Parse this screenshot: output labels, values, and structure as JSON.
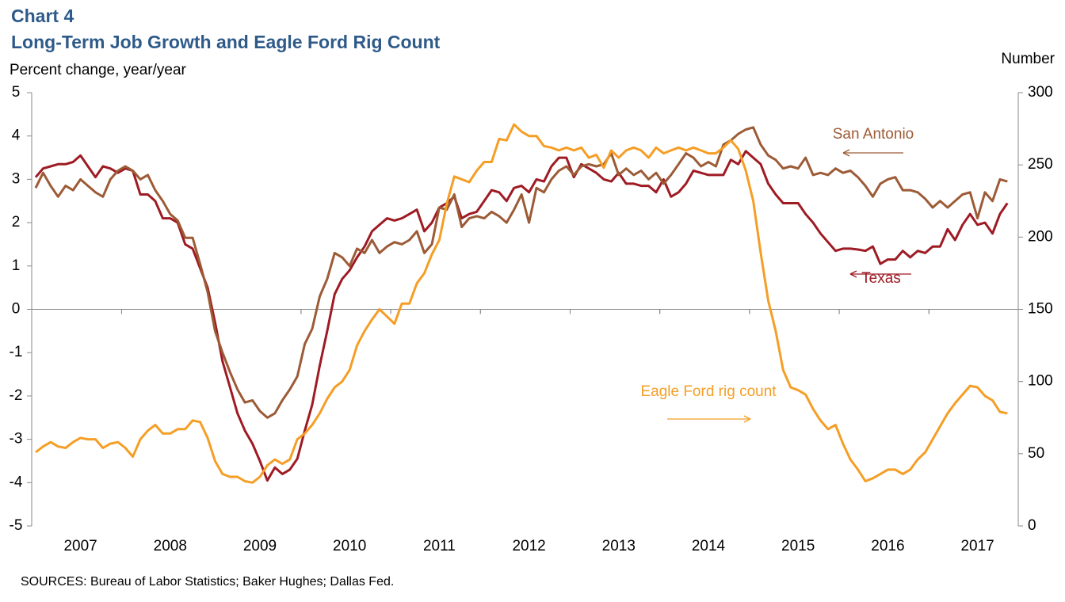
{
  "chart_data": {
    "type": "line",
    "title": "Chart 4",
    "subtitle": "Long-Term Job Growth and Eagle Ford Rig Count",
    "y_label": "Percent change, year/year",
    "y2_label": "Number",
    "source": "SOURCES: Bureau of Labor Statistics; Baker Hughes; Dallas Fed.",
    "categories": [
      null,
      null,
      null,
      null,
      null,
      null,
      "2007",
      null,
      null,
      null,
      null,
      null,
      null,
      null,
      null,
      null,
      null,
      null,
      "2008",
      null,
      null,
      null,
      null,
      null,
      null,
      null,
      null,
      null,
      null,
      null,
      "2009",
      null,
      null,
      null,
      null,
      null,
      null,
      null,
      null,
      null,
      null,
      null,
      "2010",
      null,
      null,
      null,
      null,
      null,
      null,
      null,
      null,
      null,
      null,
      null,
      "2011",
      null,
      null,
      null,
      null,
      null,
      null,
      null,
      null,
      null,
      null,
      null,
      "2012",
      null,
      null,
      null,
      null,
      null,
      null,
      null,
      null,
      null,
      null,
      null,
      "2013",
      null,
      null,
      null,
      null,
      null,
      null,
      null,
      null,
      null,
      null,
      null,
      "2014",
      null,
      null,
      null,
      null,
      null,
      null,
      null,
      null,
      null,
      null,
      null,
      "2015",
      null,
      null,
      null,
      null,
      null,
      null,
      null,
      null,
      null,
      null,
      null,
      "2016",
      null,
      null,
      null,
      null,
      null,
      null,
      null,
      null,
      null,
      null,
      null,
      "2017",
      null,
      null,
      null,
      null
    ],
    "ylim": [
      -5,
      5
    ],
    "yticks": [
      -5,
      -4,
      -3,
      -2,
      -1,
      0,
      1,
      2,
      3,
      4,
      5
    ],
    "y2lim": [
      0,
      300
    ],
    "y2ticks": [
      0,
      50,
      100,
      150,
      200,
      250,
      300
    ],
    "series": [
      {
        "name": "Texas",
        "color": "#9e1b24",
        "values": [
          3.05,
          3.25,
          3.3,
          3.35,
          3.35,
          3.4,
          3.55,
          3.3,
          3.05,
          3.3,
          3.25,
          3.15,
          3.25,
          3.2,
          2.65,
          2.65,
          2.5,
          2.1,
          2.1,
          2.0,
          1.5,
          1.4,
          0.95,
          0.5,
          -0.3,
          -1.2,
          -1.8,
          -2.4,
          -2.8,
          -3.1,
          -3.5,
          -3.95,
          -3.65,
          -3.8,
          -3.7,
          -3.45,
          -2.8,
          -2.2,
          -1.3,
          -0.5,
          0.35,
          0.7,
          0.9,
          1.2,
          1.45,
          1.8,
          1.95,
          2.1,
          2.05,
          2.1,
          2.2,
          2.3,
          1.8,
          2.0,
          2.35,
          2.45,
          2.6,
          2.1,
          2.2,
          2.25,
          2.5,
          2.75,
          2.7,
          2.5,
          2.8,
          2.85,
          2.7,
          3.0,
          2.95,
          3.3,
          3.5,
          3.5,
          3.05,
          3.35,
          3.25,
          3.15,
          3.0,
          2.95,
          3.15,
          2.9,
          2.9,
          2.85,
          2.85,
          2.7,
          3.0,
          2.6,
          2.7,
          2.9,
          3.2,
          3.15,
          3.1,
          3.1,
          3.1,
          3.45,
          3.35,
          3.65,
          3.5,
          3.35,
          2.9,
          2.65,
          2.45,
          2.45,
          2.45,
          2.2,
          2.0,
          1.75,
          1.55,
          1.35,
          1.4,
          1.4,
          1.38,
          1.35,
          1.45,
          1.05,
          1.15,
          1.15,
          1.35,
          1.2,
          1.35,
          1.3,
          1.45,
          1.45,
          1.85,
          1.6,
          1.95,
          2.2,
          1.95,
          2.0,
          1.75,
          2.2,
          2.45
        ]
      },
      {
        "name": "San Antonio",
        "color": "#9c5b36",
        "values": [
          2.8,
          3.15,
          2.85,
          2.6,
          2.85,
          2.75,
          3.0,
          2.85,
          2.7,
          2.6,
          3.0,
          3.2,
          3.3,
          3.2,
          3.0,
          3.1,
          2.75,
          2.5,
          2.2,
          2.05,
          1.65,
          1.65,
          1.05,
          0.4,
          -0.5,
          -1.0,
          -1.45,
          -1.85,
          -2.15,
          -2.1,
          -2.35,
          -2.5,
          -2.4,
          -2.1,
          -1.85,
          -1.55,
          -0.8,
          -0.45,
          0.3,
          0.7,
          1.3,
          1.2,
          1.0,
          1.4,
          1.3,
          1.6,
          1.3,
          1.45,
          1.55,
          1.5,
          1.6,
          1.8,
          1.3,
          1.5,
          2.35,
          2.3,
          2.65,
          1.9,
          2.1,
          2.15,
          2.1,
          2.25,
          2.15,
          2.0,
          2.3,
          2.65,
          2.0,
          2.8,
          2.7,
          3.0,
          3.2,
          3.3,
          3.1,
          3.3,
          3.35,
          3.3,
          3.35,
          3.6,
          3.1,
          3.25,
          3.1,
          3.2,
          3.0,
          3.15,
          2.9,
          3.1,
          3.35,
          3.6,
          3.5,
          3.3,
          3.4,
          3.3,
          3.8,
          3.9,
          4.05,
          4.15,
          4.2,
          3.8,
          3.55,
          3.45,
          3.25,
          3.3,
          3.25,
          3.5,
          3.1,
          3.15,
          3.1,
          3.25,
          3.15,
          3.2,
          3.05,
          2.85,
          2.6,
          2.9,
          3.0,
          3.05,
          2.75,
          2.75,
          2.7,
          2.55,
          2.35,
          2.5,
          2.35,
          2.5,
          2.65,
          2.7,
          2.1,
          2.7,
          2.5,
          3.0,
          2.95
        ]
      },
      {
        "name": "Eagle Ford rig count",
        "color": "#f59e26",
        "axis": "y2",
        "values": [
          51,
          55,
          58,
          55,
          54,
          58,
          61,
          60,
          60,
          54,
          57,
          58,
          54,
          48,
          60,
          66,
          70,
          64,
          64,
          67,
          67,
          73,
          72,
          61,
          45,
          36,
          34,
          34,
          31,
          30,
          34,
          42,
          46,
          43,
          46,
          60,
          64,
          70,
          78,
          88,
          96,
          100,
          108,
          125,
          135,
          143,
          150,
          145,
          140,
          154,
          154,
          168,
          175,
          188,
          198,
          223,
          242,
          240,
          238,
          246,
          252,
          252,
          268,
          267,
          278,
          273,
          270,
          270,
          263,
          262,
          260,
          262,
          260,
          262,
          255,
          257,
          248,
          260,
          255,
          260,
          262,
          260,
          255,
          262,
          258,
          260,
          262,
          260,
          262,
          260,
          258,
          258,
          262,
          267,
          261,
          246,
          225,
          189,
          156,
          135,
          108,
          96,
          94,
          91,
          81,
          73,
          67,
          70,
          57,
          46,
          39,
          31,
          33,
          36,
          39,
          39,
          36,
          39,
          46,
          51,
          60,
          69,
          78,
          85,
          91,
          97,
          96,
          90,
          87,
          79,
          78
        ]
      }
    ]
  }
}
